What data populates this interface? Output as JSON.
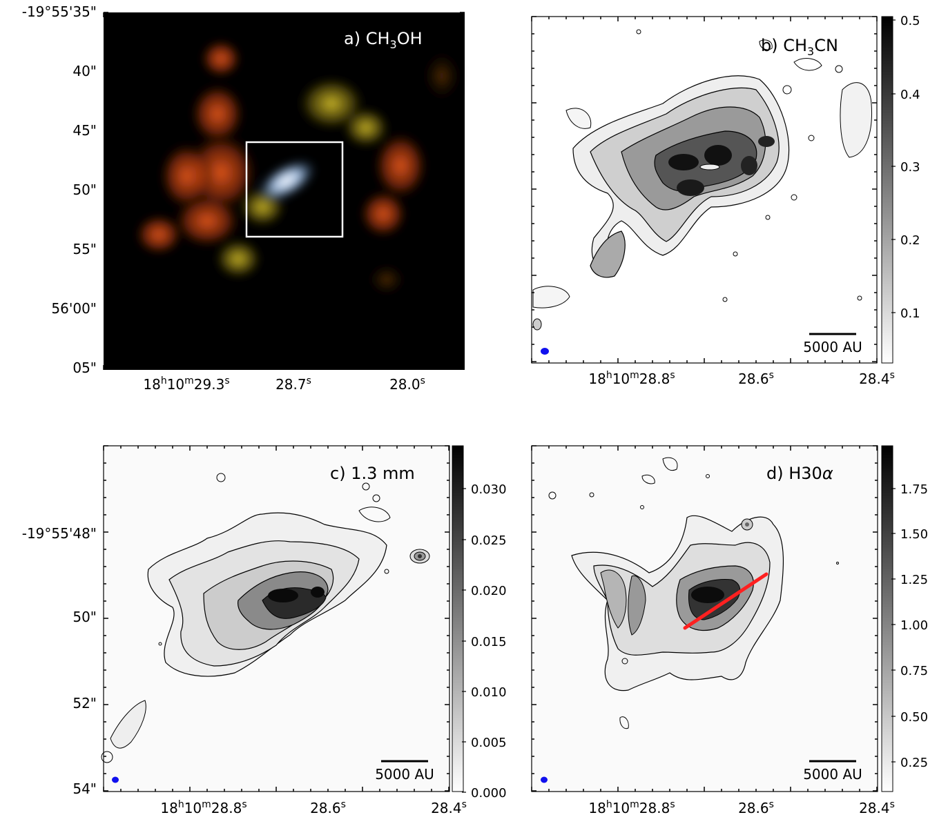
{
  "panels": {
    "a": {
      "label_prefix": "a) CH",
      "label_sub": "3",
      "label_suffix": "OH",
      "y_ticks": [
        "-19°55'35\"",
        "40\"",
        "45\"",
        "50\"",
        "55\"",
        "56'00\"",
        "05\""
      ],
      "x_ticks": [
        {
          "main": "18",
          "sup1": "h",
          "mid": "10",
          "sup2": "m",
          "end": "29.3",
          "sup3": "s"
        },
        {
          "main": "",
          "sup1": "",
          "mid": "",
          "sup2": "",
          "end": "28.7",
          "sup3": "s"
        },
        {
          "main": "",
          "sup1": "",
          "mid": "",
          "sup2": "",
          "end": "28.0",
          "sup3": "s"
        }
      ],
      "colors": {
        "red": "#e0501a",
        "green": "#c9b52a",
        "core": "#eef6ff"
      }
    },
    "b": {
      "label_prefix": "b) CH",
      "label_sub": "3",
      "label_suffix": "CN",
      "x_ticks": [
        {
          "main": "18",
          "sup1": "h",
          "mid": "10",
          "sup2": "m",
          "end": "28.8",
          "sup3": "s"
        },
        {
          "main": "",
          "sup1": "",
          "mid": "",
          "sup2": "",
          "end": "28.6",
          "sup3": "s"
        },
        {
          "main": "",
          "sup1": "",
          "mid": "",
          "sup2": "",
          "end": "28.4",
          "sup3": "s"
        }
      ],
      "colorbar_ticks": [
        "0.5",
        "0.4",
        "0.3",
        "0.2",
        "0.1"
      ],
      "scale_bar": "5000 AU"
    },
    "c": {
      "label": "c) 1.3 mm",
      "y_ticks": [
        "-19°55'48\"",
        "50\"",
        "52\"",
        "54\""
      ],
      "x_ticks": [
        {
          "main": "18",
          "sup1": "h",
          "mid": "10",
          "sup2": "m",
          "end": "28.8",
          "sup3": "s"
        },
        {
          "main": "",
          "sup1": "",
          "mid": "",
          "sup2": "",
          "end": "28.6",
          "sup3": "s"
        },
        {
          "main": "",
          "sup1": "",
          "mid": "",
          "sup2": "",
          "end": "28.4",
          "sup3": "s"
        }
      ],
      "colorbar_ticks": [
        "0.030",
        "0.025",
        "0.020",
        "0.015",
        "0.010",
        "0.005",
        "0.000"
      ],
      "scale_bar": "5000 AU"
    },
    "d": {
      "label_prefix": "d) H30",
      "label_greek": "α",
      "x_ticks": [
        {
          "main": "18",
          "sup1": "h",
          "mid": "10",
          "sup2": "m",
          "end": "28.8",
          "sup3": "s"
        },
        {
          "main": "",
          "sup1": "",
          "mid": "",
          "sup2": "",
          "end": "28.6",
          "sup3": "s"
        },
        {
          "main": "",
          "sup1": "",
          "mid": "",
          "sup2": "",
          "end": "28.4",
          "sup3": "s"
        }
      ],
      "colorbar_ticks": [
        "1.75",
        "1.50",
        "1.25",
        "1.00",
        "0.75",
        "0.50",
        "0.25"
      ],
      "scale_bar": "5000 AU",
      "line_color": "#ff2020"
    }
  },
  "beam_color": "#1010ee"
}
